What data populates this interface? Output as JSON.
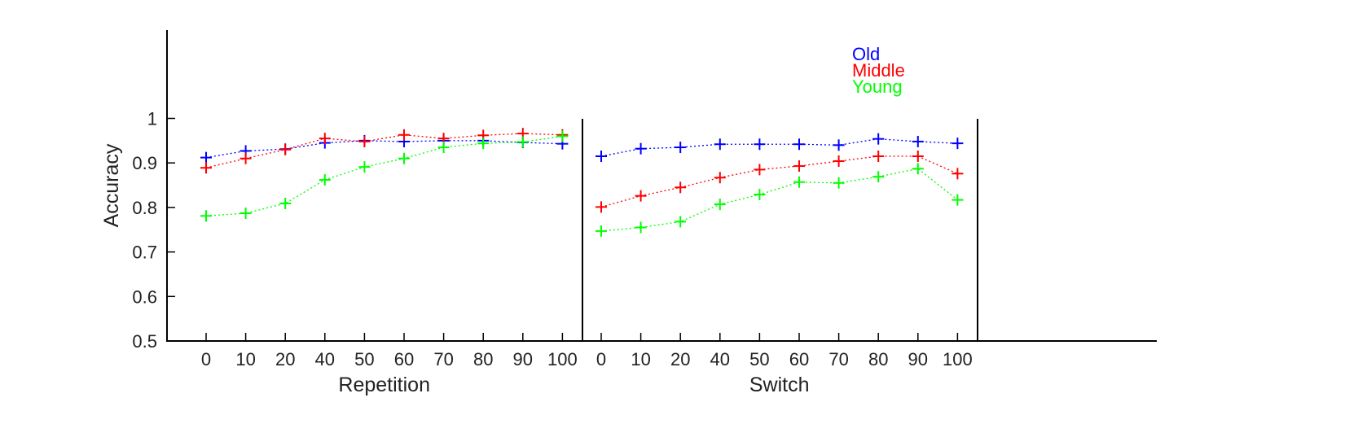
{
  "chart_data": {
    "type": "line",
    "ylabel": "Accuracy",
    "ylim": [
      0.5,
      1.2
    ],
    "yticks": [
      "0.5",
      "0.6",
      "0.7",
      "0.8",
      "0.9",
      "1"
    ],
    "yticks_values": [
      0.5,
      0.6,
      0.7,
      0.8,
      0.9,
      1.0
    ],
    "legend_position": "top-right",
    "grid": false,
    "colors": {
      "Old": "#0000ff",
      "Middle": "#ff0000",
      "Young": "#00ff00"
    },
    "legend": [
      {
        "name": "Old",
        "color": "#0000ff"
      },
      {
        "name": "Middle",
        "color": "#ff0000"
      },
      {
        "name": "Young",
        "color": "#00ff00"
      }
    ],
    "panels": [
      {
        "label": "Repetition",
        "categories": [
          "0",
          "10",
          "20",
          "40",
          "50",
          "60",
          "70",
          "80",
          "90",
          "100"
        ],
        "series": [
          {
            "name": "Old",
            "values": [
              0.912,
              0.927,
              0.931,
              0.945,
              0.95,
              0.948,
              0.95,
              0.95,
              0.946,
              0.943
            ]
          },
          {
            "name": "Middle",
            "values": [
              0.889,
              0.91,
              0.93,
              0.955,
              0.948,
              0.963,
              0.955,
              0.962,
              0.966,
              0.963
            ]
          },
          {
            "name": "Young",
            "values": [
              0.781,
              0.787,
              0.809,
              0.862,
              0.891,
              0.91,
              0.935,
              0.944,
              0.947,
              0.96
            ]
          }
        ]
      },
      {
        "label": "Switch",
        "categories": [
          "0",
          "10",
          "20",
          "40",
          "50",
          "60",
          "70",
          "80",
          "90",
          "100"
        ],
        "series": [
          {
            "name": "Old",
            "values": [
              0.915,
              0.932,
              0.935,
              0.942,
              0.942,
              0.942,
              0.94,
              0.954,
              0.948,
              0.944
            ]
          },
          {
            "name": "Middle",
            "values": [
              0.801,
              0.826,
              0.845,
              0.867,
              0.885,
              0.893,
              0.904,
              0.915,
              0.915,
              0.876
            ]
          },
          {
            "name": "Young",
            "values": [
              0.747,
              0.755,
              0.768,
              0.807,
              0.829,
              0.857,
              0.855,
              0.869,
              0.887,
              0.817
            ]
          }
        ]
      }
    ]
  }
}
